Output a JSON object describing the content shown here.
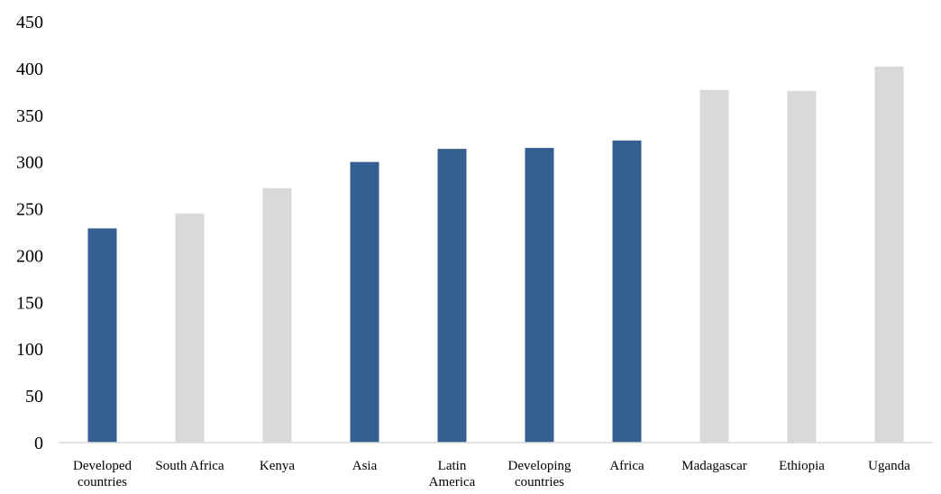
{
  "chart_data": {
    "type": "bar",
    "title": "",
    "xlabel": "",
    "ylabel": "",
    "categories": [
      "Developed countries",
      "South Africa",
      "Kenya",
      "Asia",
      "Latin America",
      "Developing countries",
      "Africa",
      "Madagascar",
      "Ethiopia",
      "Uganda"
    ],
    "category_lines": [
      [
        "Developed",
        "countries"
      ],
      [
        "South Africa"
      ],
      [
        "Kenya"
      ],
      [
        "Asia"
      ],
      [
        "Latin",
        "America"
      ],
      [
        "Developing",
        "countries"
      ],
      [
        "Africa"
      ],
      [
        "Madagascar"
      ],
      [
        "Ethiopia"
      ],
      [
        "Uganda"
      ]
    ],
    "values": [
      229,
      245,
      272,
      300,
      314,
      315,
      323,
      377,
      376,
      402
    ],
    "bar_colors": [
      "#365f91",
      "#d9d9d9",
      "#d9d9d9",
      "#365f91",
      "#365f91",
      "#365f91",
      "#365f91",
      "#d9d9d9",
      "#d9d9d9",
      "#d9d9d9"
    ],
    "ylim": [
      0,
      450
    ],
    "yticks": [
      0,
      50,
      100,
      150,
      200,
      250,
      300,
      350,
      400,
      450
    ],
    "grid": false,
    "legend": "none"
  }
}
